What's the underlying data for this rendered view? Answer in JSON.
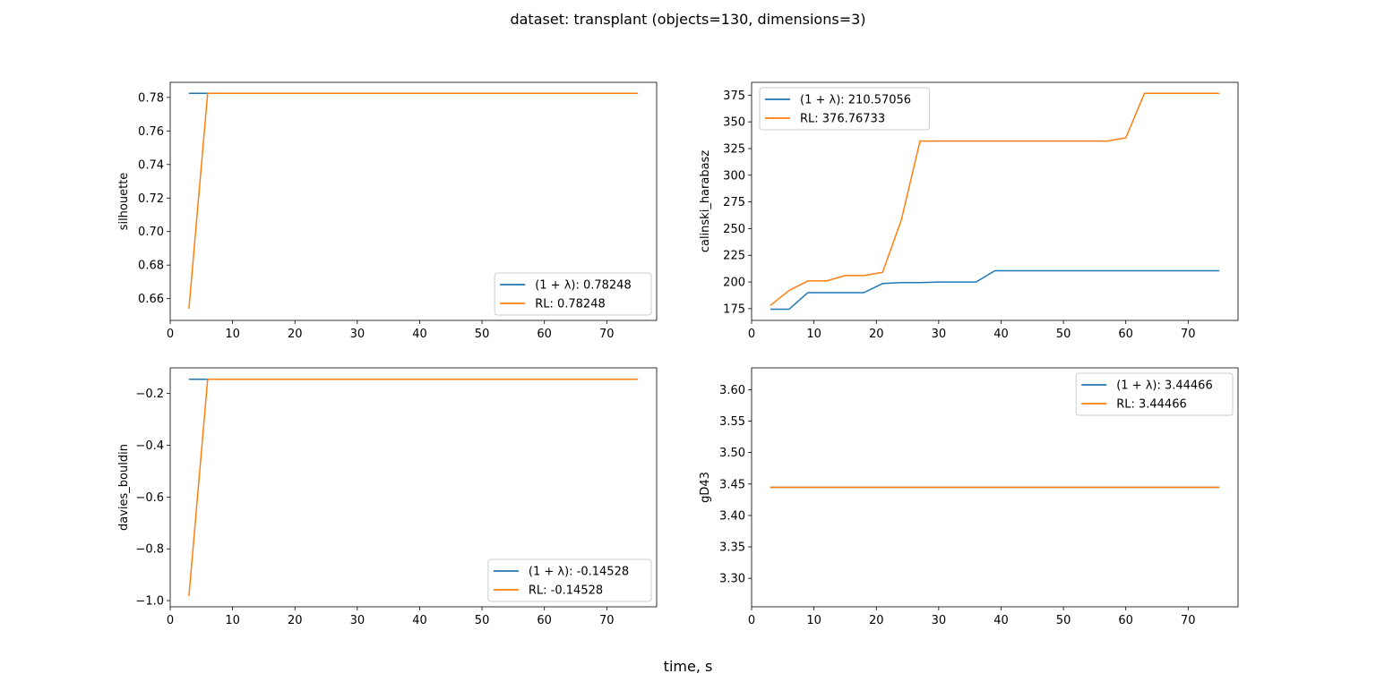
{
  "figure": {
    "title": "dataset: transplant (objects=130, dimensions=3)",
    "xlabel": "time, s"
  },
  "colors": {
    "series_1": "#1f77b4",
    "series_2": "#ff7f0e"
  },
  "chart_data": [
    {
      "type": "line",
      "ylabel": "silhouette",
      "xlim": [
        0,
        78
      ],
      "ylim": [
        0.647,
        0.789
      ],
      "xticks": [
        0,
        10,
        20,
        30,
        40,
        50,
        60,
        70
      ],
      "yticks": [
        0.66,
        0.68,
        0.7,
        0.72,
        0.74,
        0.76,
        0.78
      ],
      "ytick_labels": [
        "0.66",
        "0.68",
        "0.70",
        "0.72",
        "0.74",
        "0.76",
        "0.78"
      ],
      "legend_position": "lower-right",
      "series": [
        {
          "name": "(1 + λ): 0.78248",
          "x": [
            3,
            75
          ],
          "y": [
            0.78248,
            0.78248
          ]
        },
        {
          "name": "RL: 0.78248",
          "x": [
            3,
            6,
            75
          ],
          "y": [
            0.654,
            0.78248,
            0.78248
          ]
        }
      ]
    },
    {
      "type": "line",
      "ylabel": "calinski_harabasz",
      "xlim": [
        0,
        78
      ],
      "ylim": [
        164,
        387
      ],
      "xticks": [
        0,
        10,
        20,
        30,
        40,
        50,
        60,
        70
      ],
      "yticks": [
        175,
        200,
        225,
        250,
        275,
        300,
        325,
        350,
        375
      ],
      "ytick_labels": [
        "175",
        "200",
        "225",
        "250",
        "275",
        "300",
        "325",
        "350",
        "375"
      ],
      "legend_position": "upper-left",
      "series": [
        {
          "name": "(1 + λ): 210.57056",
          "x": [
            3,
            6,
            9,
            12,
            15,
            18,
            21,
            24,
            27,
            30,
            33,
            36,
            39,
            75
          ],
          "y": [
            174.5,
            174.5,
            190,
            190,
            190,
            190,
            198.5,
            199.5,
            199.5,
            200,
            200,
            200,
            210.57,
            210.57
          ]
        },
        {
          "name": "RL: 376.76733",
          "x": [
            3,
            6,
            9,
            12,
            15,
            18,
            21,
            24,
            27,
            57,
            60,
            63,
            75
          ],
          "y": [
            178,
            192,
            201,
            201,
            206,
            206,
            209,
            258,
            332,
            332,
            335,
            376.77,
            376.77
          ]
        }
      ]
    },
    {
      "type": "line",
      "ylabel": "davies_bouldin",
      "xlim": [
        0,
        78
      ],
      "ylim": [
        -1.024,
        -0.101
      ],
      "xticks": [
        0,
        10,
        20,
        30,
        40,
        50,
        60,
        70
      ],
      "yticks": [
        -1.0,
        -0.8,
        -0.6,
        -0.4,
        -0.2
      ],
      "ytick_labels": [
        "−1.0",
        "−0.8",
        "−0.6",
        "−0.4",
        "−0.2"
      ],
      "legend_position": "lower-right",
      "series": [
        {
          "name": "(1 + λ): -0.14528",
          "x": [
            3,
            75
          ],
          "y": [
            -0.14528,
            -0.14528
          ]
        },
        {
          "name": "RL: -0.14528",
          "x": [
            3,
            6,
            75
          ],
          "y": [
            -0.982,
            -0.14528,
            -0.14528
          ]
        }
      ]
    },
    {
      "type": "line",
      "ylabel": "gD43",
      "xlim": [
        0,
        78
      ],
      "ylim": [
        3.2547,
        3.6347
      ],
      "xticks": [
        0,
        10,
        20,
        30,
        40,
        50,
        60,
        70
      ],
      "yticks": [
        3.3,
        3.35,
        3.4,
        3.45,
        3.5,
        3.55,
        3.6
      ],
      "ytick_labels": [
        "3.30",
        "3.35",
        "3.40",
        "3.45",
        "3.50",
        "3.55",
        "3.60"
      ],
      "legend_position": "upper-right",
      "series": [
        {
          "name": "(1 + λ): 3.44466",
          "x": [
            3,
            75
          ],
          "y": [
            3.44466,
            3.44466
          ]
        },
        {
          "name": "RL: 3.44466",
          "x": [
            3,
            75
          ],
          "y": [
            3.44466,
            3.44466
          ]
        }
      ]
    }
  ]
}
